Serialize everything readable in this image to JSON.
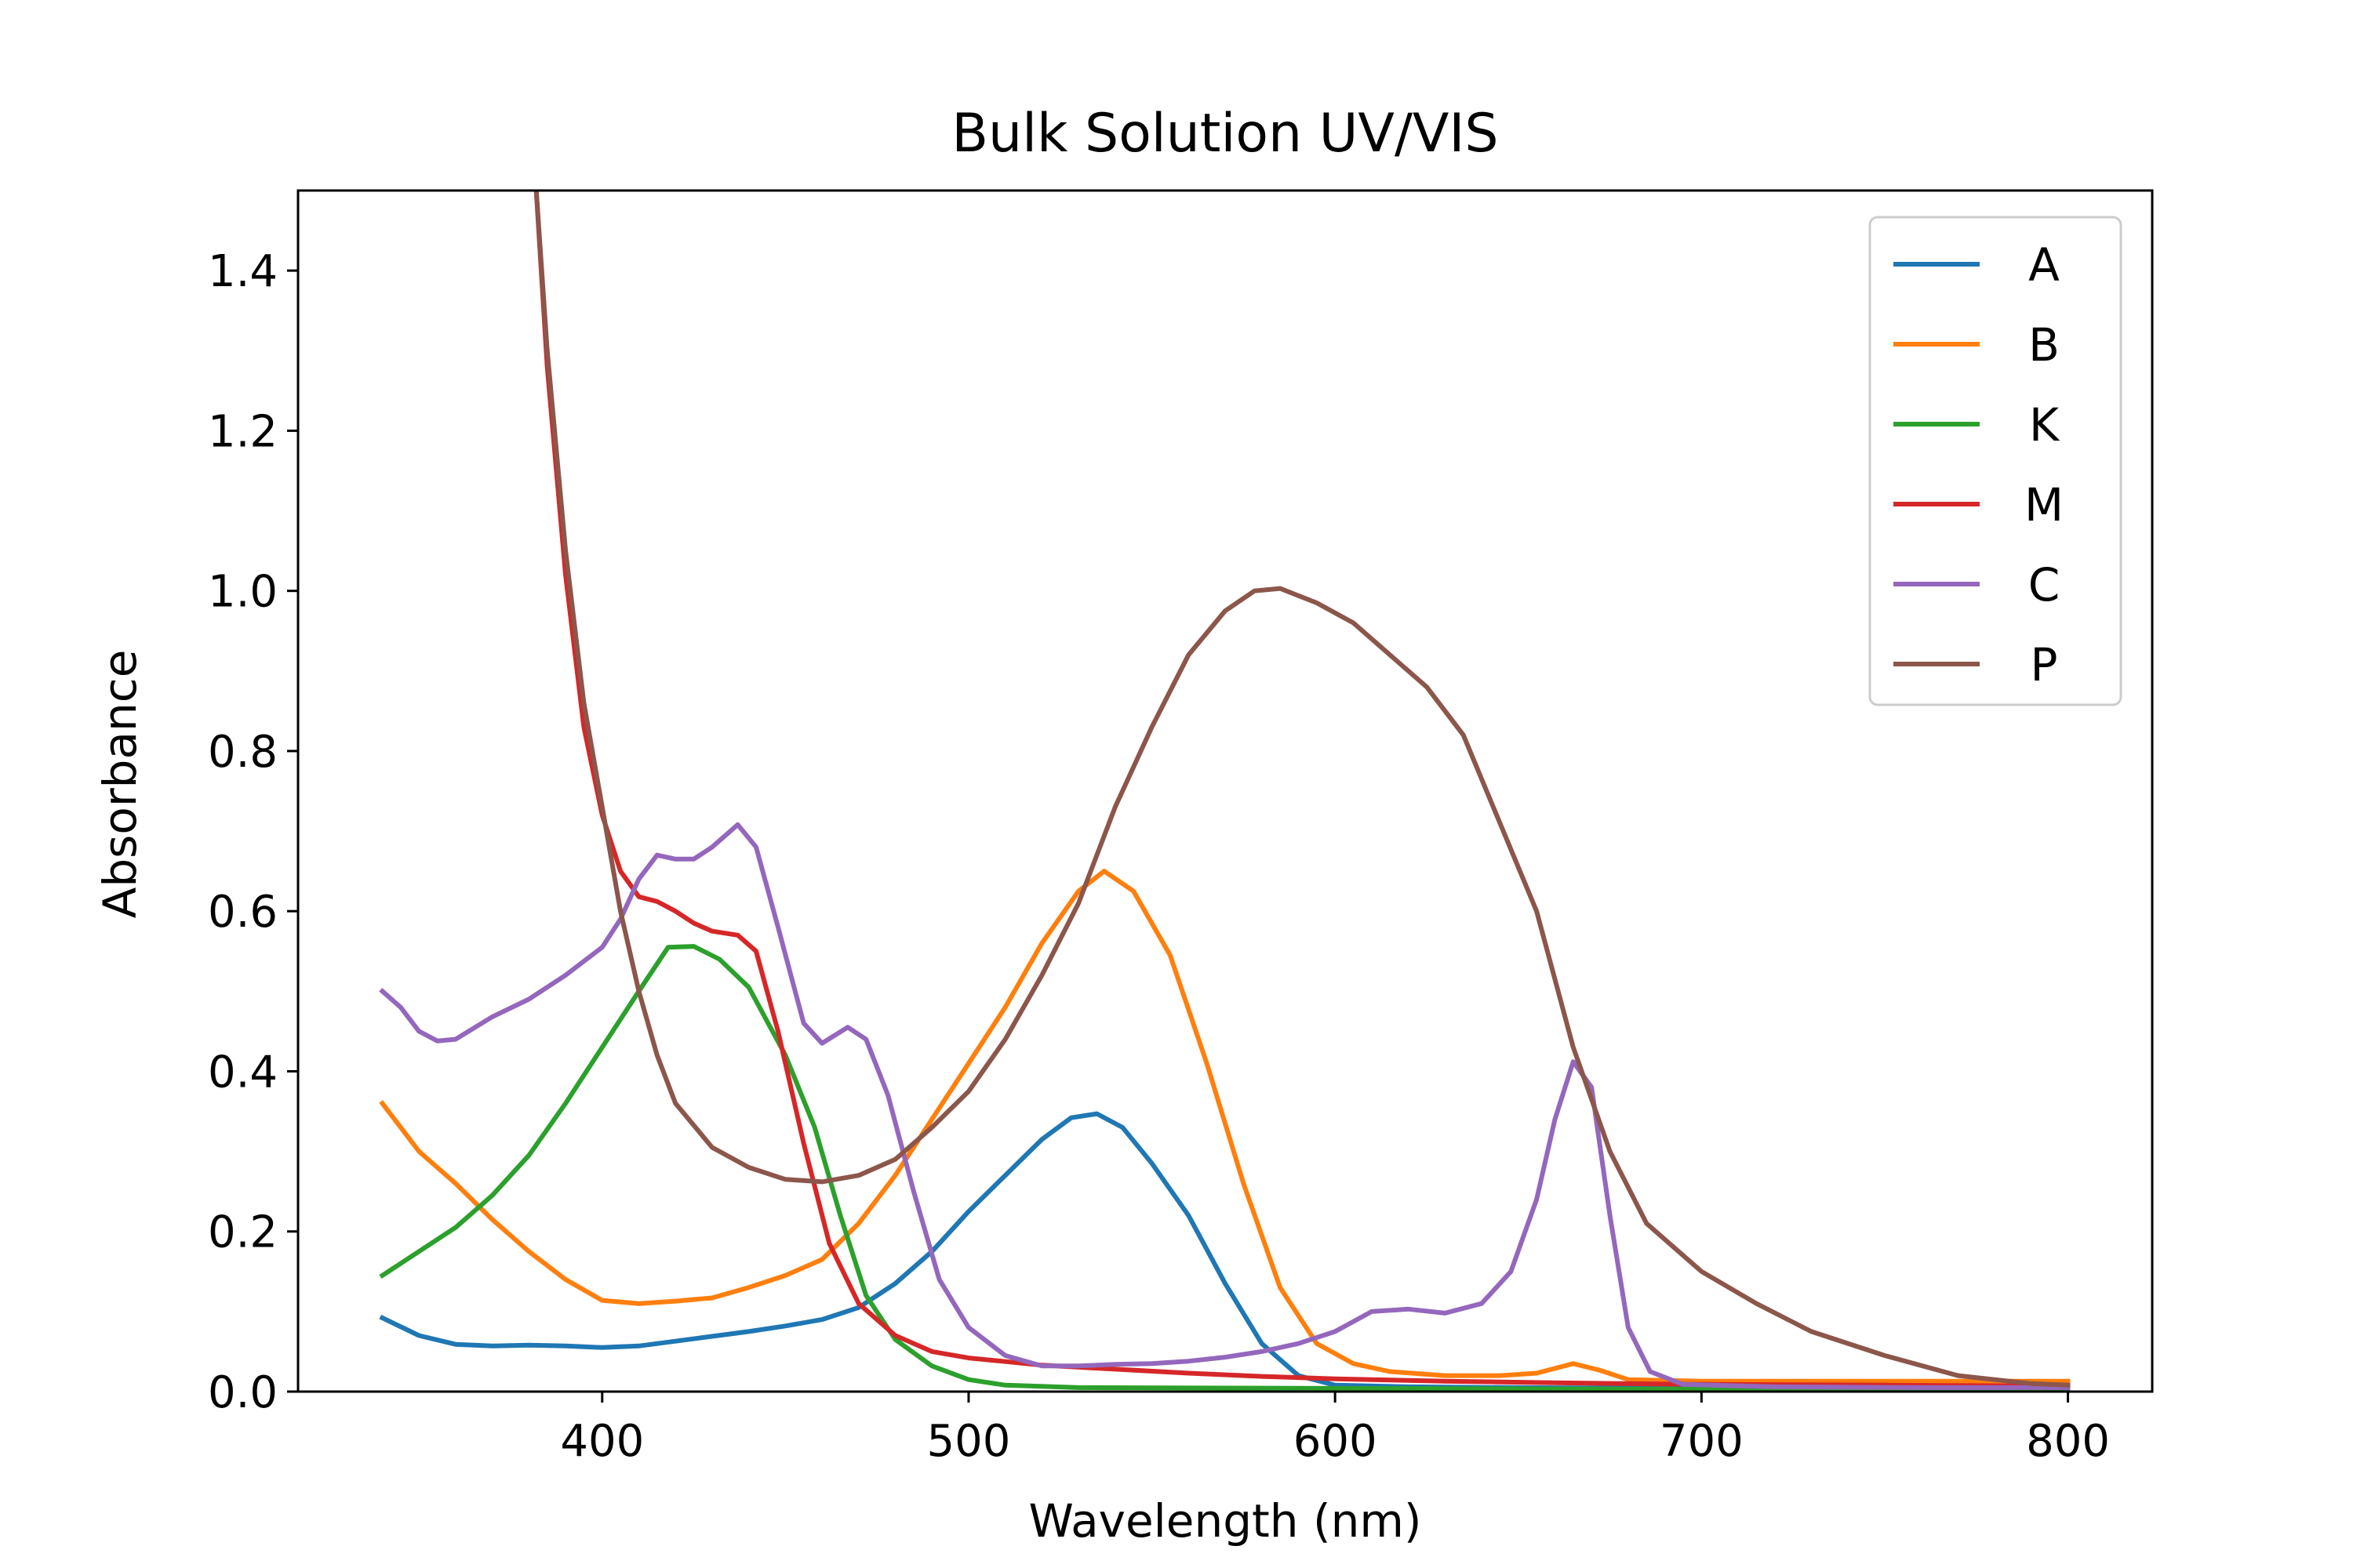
{
  "chart_data": {
    "type": "line",
    "title": "Bulk Solution UV/VIS",
    "xlabel": "Wavelength (nm)",
    "ylabel": "Absorbance",
    "xlim": [
      317,
      823
    ],
    "ylim": [
      0,
      1.5
    ],
    "xticks": [
      400,
      500,
      600,
      700,
      800
    ],
    "yticks": [
      0.0,
      0.2,
      0.4,
      0.6,
      0.8,
      1.0,
      1.2,
      1.4
    ],
    "xtick_labels": [
      "400",
      "500",
      "600",
      "700",
      "800"
    ],
    "ytick_labels": [
      "0.0",
      "0.2",
      "0.4",
      "0.6",
      "0.8",
      "1.0",
      "1.2",
      "1.4"
    ],
    "grid": false,
    "legend_position": "top-right",
    "series": [
      {
        "name": "A",
        "color": "#1f77b4",
        "points": [
          [
            340,
            0.092
          ],
          [
            350,
            0.07
          ],
          [
            360,
            0.059
          ],
          [
            370,
            0.057
          ],
          [
            380,
            0.058
          ],
          [
            390,
            0.057
          ],
          [
            400,
            0.055
          ],
          [
            410,
            0.057
          ],
          [
            420,
            0.063
          ],
          [
            430,
            0.069
          ],
          [
            440,
            0.075
          ],
          [
            450,
            0.082
          ],
          [
            460,
            0.09
          ],
          [
            470,
            0.105
          ],
          [
            480,
            0.135
          ],
          [
            490,
            0.175
          ],
          [
            500,
            0.225
          ],
          [
            510,
            0.27
          ],
          [
            520,
            0.315
          ],
          [
            528,
            0.342
          ],
          [
            535,
            0.347
          ],
          [
            542,
            0.33
          ],
          [
            550,
            0.285
          ],
          [
            560,
            0.22
          ],
          [
            570,
            0.135
          ],
          [
            580,
            0.06
          ],
          [
            590,
            0.02
          ],
          [
            600,
            0.008
          ],
          [
            620,
            0.006
          ],
          [
            650,
            0.005
          ],
          [
            700,
            0.004
          ],
          [
            750,
            0.003
          ],
          [
            800,
            0.003
          ]
        ]
      },
      {
        "name": "B",
        "color": "#ff7f0e",
        "points": [
          [
            340,
            0.36
          ],
          [
            350,
            0.3
          ],
          [
            360,
            0.26
          ],
          [
            370,
            0.215
          ],
          [
            380,
            0.175
          ],
          [
            390,
            0.14
          ],
          [
            400,
            0.114
          ],
          [
            410,
            0.11
          ],
          [
            420,
            0.113
          ],
          [
            430,
            0.117
          ],
          [
            440,
            0.13
          ],
          [
            450,
            0.145
          ],
          [
            460,
            0.165
          ],
          [
            470,
            0.21
          ],
          [
            480,
            0.27
          ],
          [
            490,
            0.34
          ],
          [
            500,
            0.41
          ],
          [
            510,
            0.48
          ],
          [
            520,
            0.56
          ],
          [
            530,
            0.625
          ],
          [
            537,
            0.65
          ],
          [
            545,
            0.625
          ],
          [
            555,
            0.545
          ],
          [
            565,
            0.41
          ],
          [
            575,
            0.26
          ],
          [
            585,
            0.13
          ],
          [
            595,
            0.06
          ],
          [
            605,
            0.035
          ],
          [
            615,
            0.025
          ],
          [
            630,
            0.02
          ],
          [
            645,
            0.02
          ],
          [
            655,
            0.023
          ],
          [
            665,
            0.035
          ],
          [
            672,
            0.027
          ],
          [
            680,
            0.015
          ],
          [
            700,
            0.013
          ],
          [
            750,
            0.013
          ],
          [
            800,
            0.013
          ]
        ]
      },
      {
        "name": "K",
        "color": "#2ca02c",
        "points": [
          [
            340,
            0.145
          ],
          [
            350,
            0.175
          ],
          [
            360,
            0.205
          ],
          [
            370,
            0.245
          ],
          [
            380,
            0.295
          ],
          [
            390,
            0.36
          ],
          [
            400,
            0.43
          ],
          [
            410,
            0.5
          ],
          [
            418,
            0.555
          ],
          [
            425,
            0.556
          ],
          [
            432,
            0.54
          ],
          [
            440,
            0.505
          ],
          [
            450,
            0.42
          ],
          [
            458,
            0.33
          ],
          [
            465,
            0.22
          ],
          [
            472,
            0.12
          ],
          [
            480,
            0.065
          ],
          [
            490,
            0.032
          ],
          [
            500,
            0.015
          ],
          [
            510,
            0.008
          ],
          [
            530,
            0.005
          ],
          [
            600,
            0.004
          ],
          [
            700,
            0.003
          ],
          [
            800,
            0.003
          ]
        ]
      },
      {
        "name": "M",
        "color": "#d62728",
        "points": [
          [
            382,
            1.5
          ],
          [
            385,
            1.28
          ],
          [
            390,
            1.02
          ],
          [
            395,
            0.83
          ],
          [
            400,
            0.72
          ],
          [
            405,
            0.65
          ],
          [
            410,
            0.618
          ],
          [
            415,
            0.612
          ],
          [
            420,
            0.6
          ],
          [
            425,
            0.585
          ],
          [
            430,
            0.575
          ],
          [
            437,
            0.57
          ],
          [
            442,
            0.55
          ],
          [
            448,
            0.45
          ],
          [
            455,
            0.31
          ],
          [
            462,
            0.185
          ],
          [
            470,
            0.11
          ],
          [
            480,
            0.07
          ],
          [
            490,
            0.05
          ],
          [
            500,
            0.042
          ],
          [
            520,
            0.033
          ],
          [
            540,
            0.028
          ],
          [
            560,
            0.023
          ],
          [
            580,
            0.019
          ],
          [
            600,
            0.016
          ],
          [
            630,
            0.013
          ],
          [
            660,
            0.011
          ],
          [
            700,
            0.009
          ],
          [
            750,
            0.008
          ],
          [
            800,
            0.007
          ]
        ]
      },
      {
        "name": "C",
        "color": "#9467bd",
        "points": [
          [
            340,
            0.5
          ],
          [
            345,
            0.48
          ],
          [
            350,
            0.45
          ],
          [
            355,
            0.438
          ],
          [
            360,
            0.44
          ],
          [
            370,
            0.468
          ],
          [
            380,
            0.49
          ],
          [
            390,
            0.52
          ],
          [
            400,
            0.555
          ],
          [
            405,
            0.59
          ],
          [
            410,
            0.64
          ],
          [
            415,
            0.67
          ],
          [
            420,
            0.665
          ],
          [
            425,
            0.665
          ],
          [
            430,
            0.68
          ],
          [
            437,
            0.708
          ],
          [
            442,
            0.68
          ],
          [
            448,
            0.58
          ],
          [
            455,
            0.46
          ],
          [
            460,
            0.435
          ],
          [
            467,
            0.455
          ],
          [
            472,
            0.44
          ],
          [
            478,
            0.37
          ],
          [
            485,
            0.25
          ],
          [
            492,
            0.14
          ],
          [
            500,
            0.08
          ],
          [
            510,
            0.045
          ],
          [
            520,
            0.032
          ],
          [
            530,
            0.032
          ],
          [
            540,
            0.034
          ],
          [
            550,
            0.035
          ],
          [
            560,
            0.038
          ],
          [
            570,
            0.043
          ],
          [
            580,
            0.05
          ],
          [
            590,
            0.06
          ],
          [
            600,
            0.075
          ],
          [
            610,
            0.1
          ],
          [
            620,
            0.103
          ],
          [
            630,
            0.098
          ],
          [
            640,
            0.11
          ],
          [
            648,
            0.15
          ],
          [
            655,
            0.24
          ],
          [
            660,
            0.34
          ],
          [
            665,
            0.412
          ],
          [
            670,
            0.38
          ],
          [
            675,
            0.22
          ],
          [
            680,
            0.08
          ],
          [
            686,
            0.025
          ],
          [
            695,
            0.009
          ],
          [
            720,
            0.006
          ],
          [
            760,
            0.005
          ],
          [
            800,
            0.005
          ]
        ]
      },
      {
        "name": "P",
        "color": "#8c564b",
        "points": [
          [
            382,
            1.5
          ],
          [
            385,
            1.3
          ],
          [
            390,
            1.05
          ],
          [
            395,
            0.86
          ],
          [
            400,
            0.73
          ],
          [
            405,
            0.6
          ],
          [
            410,
            0.5
          ],
          [
            415,
            0.42
          ],
          [
            420,
            0.36
          ],
          [
            430,
            0.305
          ],
          [
            440,
            0.28
          ],
          [
            450,
            0.265
          ],
          [
            460,
            0.262
          ],
          [
            470,
            0.27
          ],
          [
            480,
            0.29
          ],
          [
            490,
            0.33
          ],
          [
            500,
            0.375
          ],
          [
            510,
            0.44
          ],
          [
            520,
            0.52
          ],
          [
            530,
            0.61
          ],
          [
            540,
            0.73
          ],
          [
            550,
            0.83
          ],
          [
            560,
            0.92
          ],
          [
            570,
            0.975
          ],
          [
            578,
            1.0
          ],
          [
            585,
            1.003
          ],
          [
            595,
            0.985
          ],
          [
            605,
            0.96
          ],
          [
            615,
            0.92
          ],
          [
            625,
            0.88
          ],
          [
            635,
            0.82
          ],
          [
            645,
            0.71
          ],
          [
            655,
            0.6
          ],
          [
            665,
            0.43
          ],
          [
            675,
            0.3
          ],
          [
            685,
            0.21
          ],
          [
            700,
            0.15
          ],
          [
            715,
            0.11
          ],
          [
            730,
            0.075
          ],
          [
            750,
            0.045
          ],
          [
            770,
            0.02
          ],
          [
            790,
            0.01
          ],
          [
            800,
            0.008
          ]
        ]
      }
    ]
  }
}
